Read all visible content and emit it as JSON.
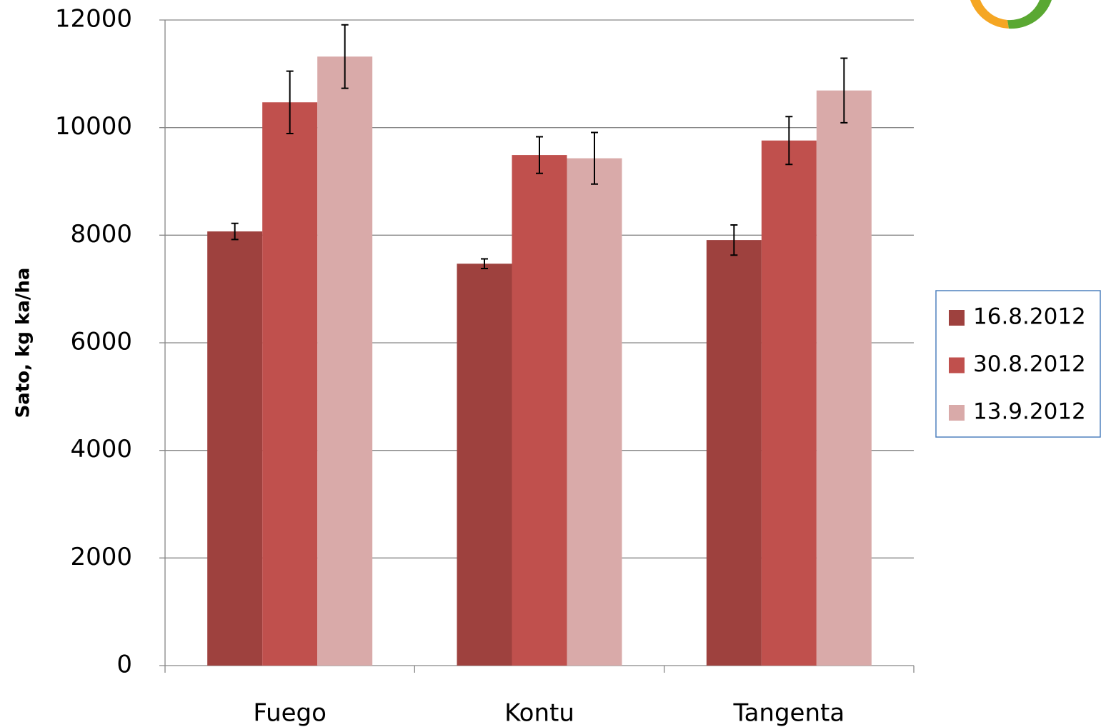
{
  "chart_data": {
    "type": "bar",
    "y_label": "Sato, kg ka/ha",
    "categories": [
      "Fuego",
      "Kontu",
      "Tangenta"
    ],
    "series": [
      {
        "name": "16.8.2012",
        "color": "#9e413e",
        "values": [
          8070,
          7470,
          7910
        ],
        "errors": [
          150,
          90,
          280
        ]
      },
      {
        "name": "30.8.2012",
        "color": "#c0504d",
        "values": [
          10470,
          9490,
          9760
        ],
        "errors": [
          580,
          340,
          445
        ]
      },
      {
        "name": "13.9.2012",
        "color": "#d9aaa9",
        "values": [
          11320,
          9430,
          10690
        ],
        "errors": [
          590,
          480,
          600
        ]
      }
    ],
    "ylim": [
      0,
      12000
    ],
    "yticks": [
      0,
      2000,
      4000,
      6000,
      8000,
      10000,
      12000
    ],
    "grid": true,
    "legend": "right"
  }
}
